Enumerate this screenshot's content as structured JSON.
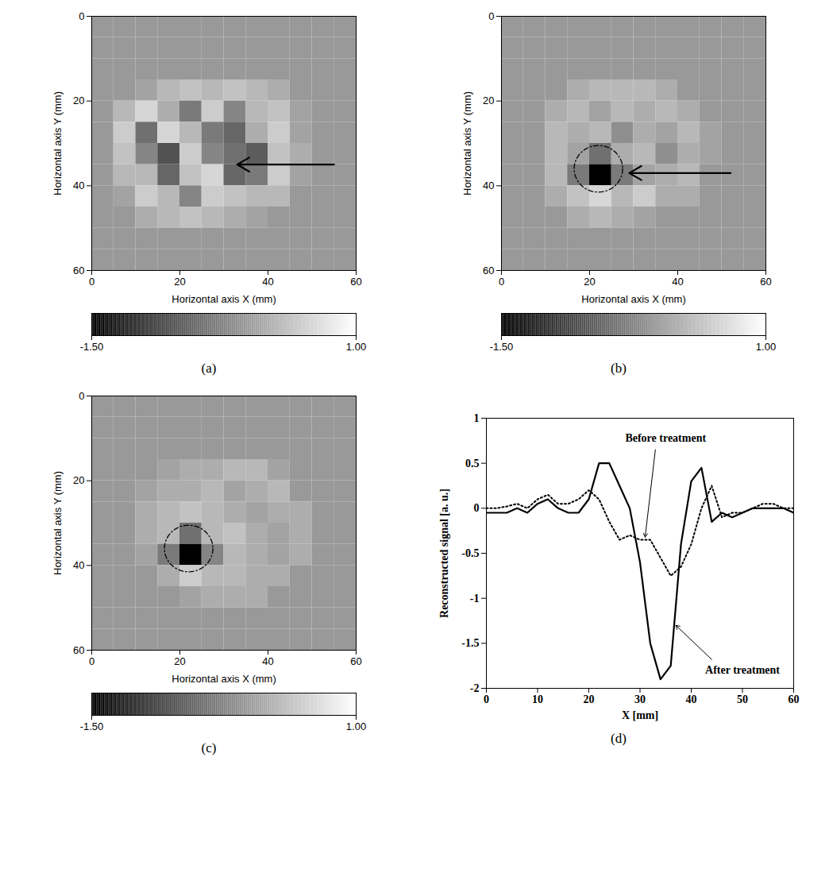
{
  "chart_data": [
    {
      "type": "heatmap",
      "panel_label": "(a)",
      "xlabel": "Horizontal axis X (mm)",
      "ylabel": "Horizontal axis Y (mm)",
      "xlim": [
        0,
        60
      ],
      "ylim": [
        60,
        0
      ],
      "xticks": [
        0,
        20,
        40,
        60
      ],
      "yticks": [
        0,
        20,
        40,
        60
      ],
      "cells": [
        [
          0,
          0,
          0,
          0,
          0,
          0,
          0,
          0,
          0,
          0,
          0,
          0
        ],
        [
          0,
          0,
          0,
          0,
          0,
          0,
          0,
          0,
          0,
          0,
          0,
          0
        ],
        [
          0,
          0,
          0,
          0,
          0,
          0,
          0,
          0,
          0,
          0,
          0,
          0
        ],
        [
          0,
          0,
          0.1,
          0.3,
          0.4,
          0.3,
          0.4,
          0.3,
          0.2,
          0,
          0,
          0
        ],
        [
          0,
          0.3,
          0.6,
          0.2,
          -0.3,
          0.5,
          -0.2,
          0.3,
          0.4,
          0.1,
          0,
          0
        ],
        [
          0,
          0.5,
          -0.4,
          0.6,
          0.3,
          -0.3,
          -0.5,
          0.2,
          0.5,
          0.1,
          0,
          0
        ],
        [
          0,
          0.4,
          -0.2,
          -0.7,
          0.5,
          -0.2,
          -0.4,
          -0.6,
          0.4,
          0.2,
          0,
          0
        ],
        [
          0,
          0.3,
          0.3,
          -0.5,
          0.4,
          0.6,
          -0.5,
          -0.3,
          0.5,
          0.1,
          0,
          0
        ],
        [
          0,
          0.1,
          0.5,
          0.3,
          -0.2,
          0.5,
          0.4,
          0.3,
          0.3,
          0,
          0,
          0
        ],
        [
          0,
          0,
          0.2,
          0.3,
          0.4,
          0.3,
          0.2,
          0.1,
          0,
          0,
          0,
          0
        ],
        [
          0,
          0,
          0,
          0,
          0,
          0,
          0,
          0,
          0,
          0,
          0,
          0
        ],
        [
          0,
          0,
          0,
          0,
          0,
          0,
          0,
          0,
          0,
          0,
          0,
          0
        ]
      ],
      "colorbar": {
        "lim": [
          -1.5,
          1
        ],
        "ticks": [
          {
            "value": -1.5,
            "label": "-1.50"
          },
          {
            "value": 1,
            "label": "1.00"
          }
        ]
      },
      "arrow": {
        "x1": 55,
        "y1": 35,
        "x2": 33,
        "y2": 35
      }
    },
    {
      "type": "heatmap",
      "panel_label": "(b)",
      "xlabel": "Horizontal axis X (mm)",
      "ylabel": "Horizontal axis Y (mm)",
      "xlim": [
        0,
        60
      ],
      "ylim": [
        60,
        0
      ],
      "xticks": [
        0,
        20,
        40,
        60
      ],
      "yticks": [
        0,
        20,
        40,
        60
      ],
      "cells": [
        [
          0,
          0,
          0,
          0,
          0,
          0,
          0,
          0,
          0,
          0,
          0,
          0
        ],
        [
          0,
          0,
          0,
          0,
          0,
          0,
          0,
          0,
          0,
          0,
          0,
          0
        ],
        [
          0,
          0,
          0,
          0,
          0,
          0,
          0,
          0,
          0,
          0,
          0,
          0
        ],
        [
          0,
          0,
          0,
          0.2,
          0.3,
          0.3,
          0.3,
          0.2,
          0,
          0,
          0,
          0
        ],
        [
          0,
          0,
          0.2,
          0.3,
          0.1,
          0.3,
          0.2,
          0.3,
          0.2,
          0,
          0,
          0
        ],
        [
          0,
          0,
          0.3,
          0.2,
          0.3,
          -0.1,
          0.2,
          0.1,
          0.3,
          0.1,
          0,
          0
        ],
        [
          0,
          0,
          0.3,
          0.1,
          -0.4,
          0.2,
          0.3,
          -0.1,
          0.2,
          0.1,
          0,
          0
        ],
        [
          0,
          0,
          0.3,
          -0.3,
          -1.5,
          -0.3,
          0.1,
          0.2,
          0.3,
          0,
          0,
          0
        ],
        [
          0,
          0,
          0.2,
          0.4,
          0.6,
          0.3,
          0.5,
          0.2,
          0.2,
          0,
          0,
          0
        ],
        [
          0,
          0,
          0,
          0.2,
          0.3,
          0.2,
          0.1,
          0,
          0,
          0,
          0,
          0
        ],
        [
          0,
          0,
          0,
          0,
          0,
          0,
          0,
          0,
          0,
          0,
          0,
          0
        ],
        [
          0,
          0,
          0,
          0,
          0,
          0,
          0,
          0,
          0,
          0,
          0,
          0
        ]
      ],
      "colorbar": {
        "lim": [
          -1.5,
          1
        ],
        "ticks": [
          {
            "value": -1.5,
            "label": "-1.50"
          },
          {
            "value": 1,
            "label": "1.00"
          }
        ]
      },
      "circle": {
        "x": 22,
        "y": 36,
        "r": 5.5
      },
      "arrow": {
        "x1": 52,
        "y1": 37,
        "x2": 29,
        "y2": 37
      }
    },
    {
      "type": "heatmap",
      "panel_label": "(c)",
      "xlabel": "Horizontal axis X (mm)",
      "ylabel": "Horizontal axis Y (mm)",
      "xlim": [
        0,
        60
      ],
      "ylim": [
        60,
        0
      ],
      "xticks": [
        0,
        20,
        40,
        60
      ],
      "yticks": [
        0,
        20,
        40,
        60
      ],
      "cells": [
        [
          0,
          0,
          0,
          0,
          0,
          0,
          0,
          0,
          0,
          0,
          0,
          0
        ],
        [
          0,
          0,
          0,
          0,
          0,
          0,
          0,
          0,
          0,
          0,
          0,
          0
        ],
        [
          0,
          0,
          0,
          0,
          0,
          0,
          0,
          0,
          0,
          0,
          0,
          0
        ],
        [
          0,
          0,
          0,
          0.1,
          0.2,
          0.2,
          0.3,
          0.3,
          0.1,
          0,
          0,
          0
        ],
        [
          0,
          0,
          0.1,
          0.2,
          0.2,
          0.3,
          0.1,
          0.2,
          0.3,
          0,
          0,
          0
        ],
        [
          0,
          0,
          0.2,
          0.3,
          0.4,
          0.3,
          0.2,
          0.1,
          0.2,
          0.2,
          0,
          0
        ],
        [
          0,
          0,
          0.2,
          0.3,
          -0.4,
          0.3,
          0.4,
          0.2,
          0.1,
          0.2,
          0,
          0
        ],
        [
          0,
          0,
          0.1,
          -0.3,
          -1.5,
          -0.2,
          0.3,
          0.2,
          0.1,
          0.2,
          0,
          0
        ],
        [
          0,
          0,
          0,
          0.2,
          0.5,
          0.3,
          0.3,
          0.2,
          0.2,
          0,
          0,
          0
        ],
        [
          0,
          0,
          0,
          0,
          0.1,
          0.2,
          0.2,
          0.2,
          0,
          0,
          0,
          0
        ],
        [
          0,
          0,
          0,
          0,
          0,
          0,
          0,
          0,
          0,
          0,
          0,
          0
        ],
        [
          0,
          0,
          0,
          0,
          0,
          0,
          0,
          0,
          0,
          0,
          0,
          0
        ]
      ],
      "colorbar": {
        "lim": [
          -1.5,
          1
        ],
        "ticks": [
          {
            "value": -1.5,
            "label": "-1.50"
          },
          {
            "value": 1,
            "label": "1.00"
          }
        ]
      },
      "circle": {
        "x": 22,
        "y": 36,
        "r": 5.5
      }
    },
    {
      "type": "line",
      "panel_label": "(d)",
      "xlabel": "X [mm]",
      "ylabel": "Reconstructed signal [a. u.]",
      "xlim": [
        0,
        60
      ],
      "ylim": [
        -2,
        1
      ],
      "xticks": [
        0,
        10,
        20,
        30,
        40,
        50,
        60
      ],
      "yticks": [
        -2,
        -1.5,
        -1,
        -0.5,
        0,
        0.5,
        1
      ],
      "x": [
        0,
        2,
        4,
        6,
        8,
        10,
        12,
        14,
        16,
        18,
        20,
        22,
        24,
        26,
        28,
        30,
        32,
        34,
        36,
        38,
        40,
        42,
        44,
        46,
        48,
        50,
        52,
        54,
        56,
        58,
        60
      ],
      "series": [
        {
          "name": "Before treatment",
          "color": "#000000",
          "line_style": "dotted",
          "values": [
            0,
            0,
            0.02,
            0.05,
            0,
            0.1,
            0.15,
            0.05,
            0.05,
            0.1,
            0.2,
            0.1,
            -0.15,
            -0.35,
            -0.3,
            -0.35,
            -0.35,
            -0.55,
            -0.75,
            -0.65,
            -0.4,
            0,
            0.25,
            -0.1,
            -0.05,
            -0.05,
            0,
            0.05,
            0.05,
            0,
            0
          ]
        },
        {
          "name": "After treatment",
          "color": "#000000",
          "line_style": "solid",
          "values": [
            -0.05,
            -0.05,
            -0.05,
            0,
            -0.05,
            0.05,
            0.1,
            0,
            -0.05,
            -0.05,
            0.1,
            0.5,
            0.5,
            0.25,
            0,
            -0.6,
            -1.5,
            -1.9,
            -1.75,
            -0.4,
            0.3,
            0.45,
            -0.15,
            -0.05,
            -0.1,
            -0.05,
            0,
            0,
            0,
            0,
            -0.05
          ]
        }
      ],
      "annotations": [
        {
          "text": "Before treatment",
          "x": 35,
          "y": 0.78,
          "arrow_to": [
            31,
            -0.32
          ]
        },
        {
          "text": "After treatment",
          "x": 50,
          "y": -1.8,
          "arrow_to": [
            37,
            -1.3
          ]
        }
      ]
    }
  ]
}
